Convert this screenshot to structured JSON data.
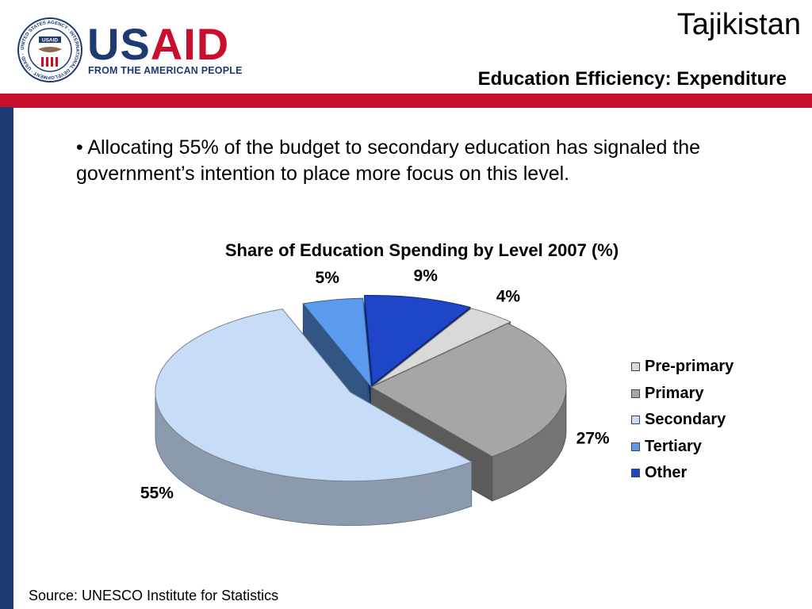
{
  "header": {
    "logo_usa": "US",
    "logo_aid": "AID",
    "logo_tagline": "FROM THE AMERICAN PEOPLE",
    "seal_text": "UNITED STATES AGENCY · INTERNATIONAL DEVELOPMENT · USAID ·",
    "country": "Tajikistan",
    "subtitle": "Education Efficiency: Expenditure"
  },
  "body": {
    "bullet": "• Allocating 55% of the budget to secondary education has signaled the government’s intention to place more focus on this level."
  },
  "chart_data": {
    "type": "pie",
    "title": "Share of Education Spending by Level 2007 (%)",
    "categories": [
      "Pre-primary",
      "Primary",
      "Secondary",
      "Tertiary",
      "Other"
    ],
    "values": [
      4,
      27,
      55,
      5,
      9
    ],
    "labels": [
      "4%",
      "27%",
      "55%",
      "5%",
      "9%"
    ],
    "colors": [
      "#d9d9d9",
      "#a6a6a6",
      "#c6dcf7",
      "#5b9bef",
      "#1f45c8"
    ],
    "legend_position": "right",
    "three_d": true
  },
  "footer": {
    "source": "Source: UNESCO Institute for Statistics"
  },
  "colors": {
    "usaid_blue": "#1f3a73",
    "usaid_red": "#c8102e"
  }
}
